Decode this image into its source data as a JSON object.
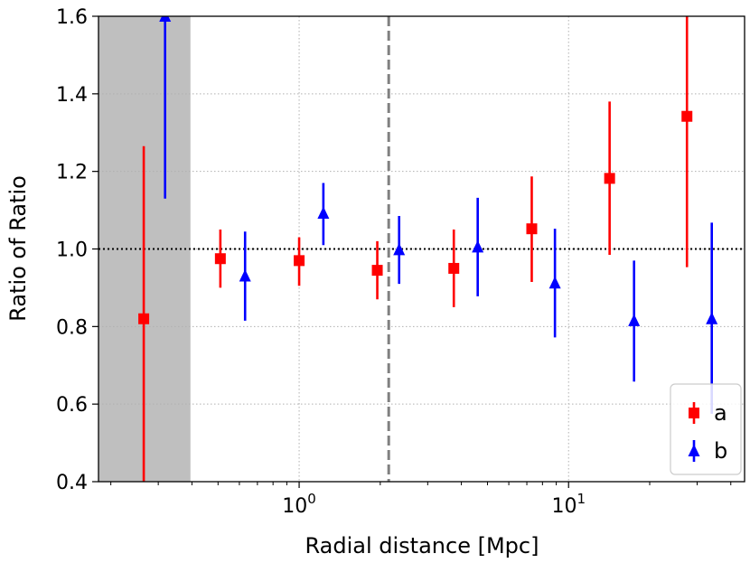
{
  "chart_data": {
    "type": "scatter",
    "xscale": "log",
    "xlim": [
      0.18,
      45
    ],
    "ylim": [
      0.4,
      1.6
    ],
    "xlabel": "Radial distance [Mpc]",
    "ylabel": "Ratio of Ratio",
    "yticks": [
      "0.4",
      "0.6",
      "0.8",
      "1.0",
      "1.2",
      "1.4",
      "1.6"
    ],
    "xticks": [
      {
        "value": 1,
        "base": "10",
        "exp": "0"
      },
      {
        "value": 10,
        "base": "10",
        "exp": "1"
      }
    ],
    "grid": true,
    "shaded_region": {
      "x0": 0.18,
      "x1": 0.395,
      "color": "#bfbfbf"
    },
    "vline": {
      "x": 2.15,
      "color": "#808080",
      "style": "dashed"
    },
    "hline": {
      "y": 1.0,
      "color": "#000000",
      "style": "dotted"
    },
    "legend_position": "lower-right",
    "series": [
      {
        "name": "a",
        "marker": "square",
        "color": "#ff0000",
        "points": [
          {
            "x": 0.265,
            "y": 0.82,
            "lo": 0.4,
            "hi": 1.265
          },
          {
            "x": 0.51,
            "y": 0.975,
            "lo": 0.9,
            "hi": 1.05
          },
          {
            "x": 1.0,
            "y": 0.97,
            "lo": 0.905,
            "hi": 1.03
          },
          {
            "x": 1.95,
            "y": 0.945,
            "lo": 0.87,
            "hi": 1.02
          },
          {
            "x": 3.75,
            "y": 0.95,
            "lo": 0.85,
            "hi": 1.05
          },
          {
            "x": 7.3,
            "y": 1.052,
            "lo": 0.915,
            "hi": 1.187
          },
          {
            "x": 14.2,
            "y": 1.182,
            "lo": 0.985,
            "hi": 1.38
          },
          {
            "x": 27.5,
            "y": 1.342,
            "lo": 0.953,
            "hi": 1.6
          }
        ]
      },
      {
        "name": "b",
        "marker": "triangle",
        "color": "#0000ff",
        "points": [
          {
            "x": 0.318,
            "y": 1.6,
            "lo": 1.13,
            "hi": 1.6
          },
          {
            "x": 0.63,
            "y": 0.93,
            "lo": 0.815,
            "hi": 1.045
          },
          {
            "x": 1.23,
            "y": 1.092,
            "lo": 1.01,
            "hi": 1.17
          },
          {
            "x": 2.35,
            "y": 0.998,
            "lo": 0.91,
            "hi": 1.085
          },
          {
            "x": 4.6,
            "y": 1.005,
            "lo": 0.878,
            "hi": 1.132
          },
          {
            "x": 8.9,
            "y": 0.912,
            "lo": 0.772,
            "hi": 1.052
          },
          {
            "x": 17.5,
            "y": 0.815,
            "lo": 0.658,
            "hi": 0.97
          },
          {
            "x": 34.0,
            "y": 0.82,
            "lo": 0.575,
            "hi": 1.068
          }
        ]
      }
    ]
  }
}
